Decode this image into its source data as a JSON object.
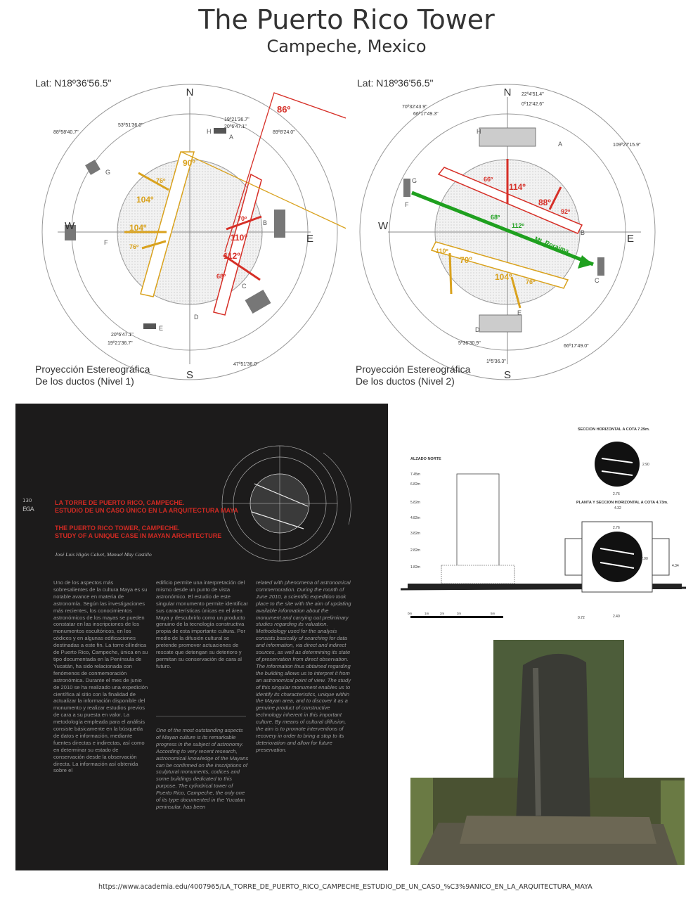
{
  "header": {
    "title": "The Puerto Rico Tower",
    "subtitle": "Campeche, Mexico"
  },
  "diagram_left": {
    "lat": "Lat: N18º36'56.5\"",
    "caption_line1": "Proyección Estereográfica",
    "caption_line2": "De los ductos (Nivel 1)",
    "cardinals": {
      "n": "N",
      "s": "S",
      "e": "E",
      "w": "W"
    },
    "bearings": [
      "19º21'36.7\"",
      "20º6'47.1\"",
      "53º51'36.0\"",
      "88º58'40.7\"",
      "89º8'24.0\"",
      "20º6'47.1\"",
      "19º21'36.7\"",
      "47º51'36.0\""
    ],
    "letters": [
      "A",
      "B",
      "C",
      "D",
      "E",
      "F",
      "G",
      "H",
      "A",
      "B",
      "C",
      "D",
      "E",
      "F",
      "G",
      "H"
    ],
    "angles_orange": [
      "90º",
      "76º",
      "104º",
      "104º",
      "76º"
    ],
    "angles_red": [
      "70º",
      "110º",
      "112º",
      "68º"
    ],
    "angle_86": "86º"
  },
  "diagram_right": {
    "lat": "Lat: N18º36'56.5\"",
    "caption_line1": "Proyección Estereográfica",
    "caption_line2": "De los ductos (Nivel 2)",
    "cardinals": {
      "n": "N",
      "s": "S",
      "e": "E",
      "w": "W"
    },
    "bearings": [
      "22º4'51.4\"",
      "0º12'42.6\"",
      "70º32'43.9\"",
      "66º17'49.3\"",
      "109º27'15.9\"",
      "5º36'30.9\"",
      "1º5'36.3\"",
      "66º17'49.0\""
    ],
    "letters": [
      "A",
      "B",
      "C",
      "D",
      "E",
      "F",
      "G",
      "H",
      "A",
      "B",
      "C",
      "D",
      "E",
      "F",
      "G",
      "H"
    ],
    "angles_red": [
      "66º",
      "114º",
      "88º",
      "92º"
    ],
    "angles_green": [
      "68º",
      "112º"
    ],
    "angles_orange": [
      "110º",
      "70º",
      "104º",
      "76º"
    ],
    "mt_label": "Mt. Roraima"
  },
  "article": {
    "page_num": "130",
    "logo": "EGA",
    "title_es_1": "LA TORRE DE PUERTO RICO, CAMPECHE.",
    "title_es_2": "ESTUDIO DE UN CASO ÚNICO EN LA ARQUITECTURA MAYA",
    "title_en_1": "THE PUERTO RICO TOWER, CAMPECHE.",
    "title_en_2": "STUDY OF A UNIQUE CASE IN MAYAN ARCHITECTURE",
    "authors": "José Luis Higón Calvet, Manuel May Castillo",
    "col1": "Uno de los aspectos más sobresalientes de la cultura Maya es su notable avance en materia de astronomía. Según las investigaciones más recientes, los conocimientos astronómicos de los mayas se pueden constatar en las inscripciones de los monumentos escultóricos, en los códices y en algunas edificaciones destinadas a este fin. La torre cilíndrica de Puerto Rico, Campeche, única en su tipo documentada en la Península de Yucatán, ha sido relacionada con fenómenos de conmemoración astronómica. Durante el mes de junio de 2010 se ha realizado una expedición científica al sitio con la finalidad de actualizar la información disponible del monumento y realizar estudios previos de cara a su puesta en valor. La metodología empleada para el análisis consiste básicamente en la búsqueda de datos e información, mediante fuentes directas e indirectas, así como en determinar su estado de conservación desde la observación directa. La información así obtenida sobre el",
    "col2": "edificio permite una interpretación del mismo desde un punto de vista astronómico. El estudio de este singular monumento permite identificar sus características únicas en el área Maya y descubrirlo como un producto genuino de la tecnología constructiva propia de esta importante cultura. Por medio de la difusión cultural se pretende promover actuaciones de rescate que detengan su deterioro y permitan su conservación de cara al futuro.",
    "col2_en": "One of the most outstanding aspects of Mayan culture is its remarkable progress in the subject of astronomy. According to very recent research, astronomical knowledge of the Mayans can be confirmed on the inscriptions of sculptural monuments, codices and some buildings dedicated to this purpose. The cylindrical tower of Puerto Rico, Campeche, the only one of its type documented in the Yucatan peninsular, has been",
    "col3": "related with phenomena of astronomical commemoration. During the month of June 2010, a scientific expedition took place to the site with the aim of updating available information about the monument and carrying out preliminary studies regarding its valuation. Methodology used for the analysis consists basically of searching for data and information, via direct and indirect sources, as well as determining its state of preservation from direct observation. The information thus obtained regarding the building allows us to interpret it from an astronomical point of view. The study of this singular monument enables us to identify its characteristics, unique within the Mayan area, and to discover it as a genuine product of constructive technology inherent in this important culture. By means of cultural diffusion, the aim is to promote interventions of recovery in order to bring a stop to its deterioration and allow for future preservation."
  },
  "plans": {
    "alzado": "ALZADO  NORTE",
    "sec1": "SECCION HORIZONTAL A COTA 7.29m.",
    "sec2": "PLANTA Y SECCION HORIZONTAL A COTA 4.73m.",
    "levels": [
      "7.45m",
      "6.82m",
      "5.82m",
      "4.82m",
      "3.82m",
      "2.82m",
      "1.82m"
    ],
    "scale": [
      "0m",
      "1m",
      "2m",
      "3m",
      "5m"
    ],
    "dims": [
      "2.90",
      "2.76",
      "4.32",
      "2.76",
      "2.90",
      "4.34",
      "2.40",
      "0.72"
    ]
  },
  "source_url": "https://www.academia.edu/4007965/LA_TORRE_DE_PUERTO_RICO_CAMPECHE_ESTUDIO_DE_UN_CASO_%C3%9ANICO_EN_LA_ARQUITECTURA_MAYA",
  "colors": {
    "red": "#d62f27",
    "orange": "#d9a21e",
    "green": "#1fa01f",
    "article_bg": "#1c1b1b"
  }
}
